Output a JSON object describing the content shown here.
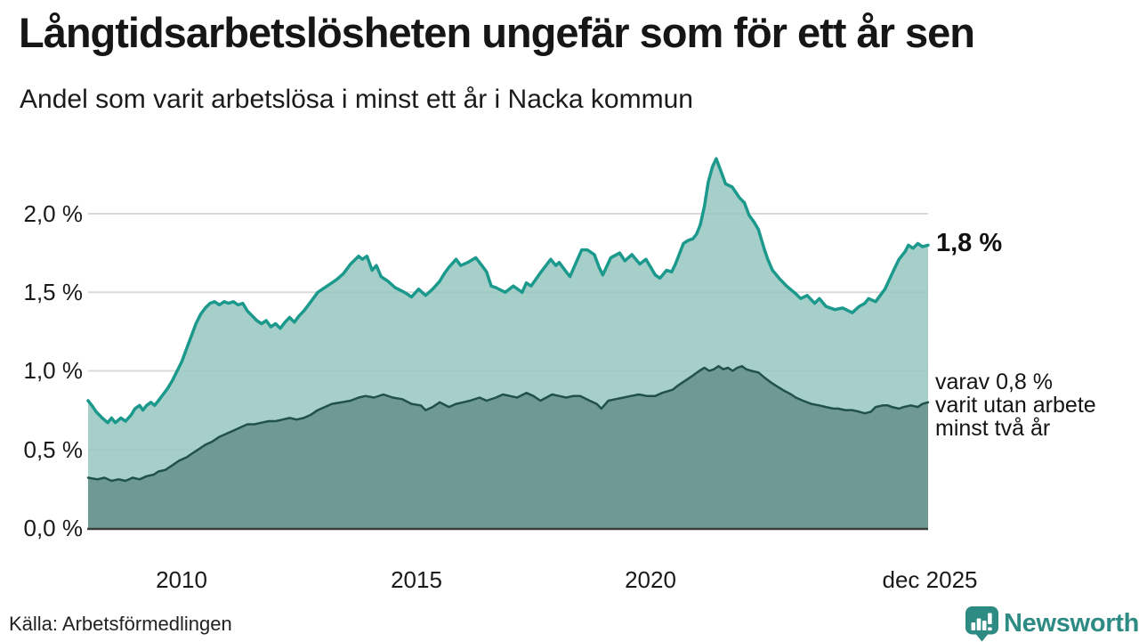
{
  "footer": {
    "source": "Källa: Arbetsförmedlingen",
    "brand": "Newsworthy"
  },
  "colors": {
    "accent_teal_line": "#1b998c",
    "area_light_fill": "#96c7c0",
    "area_dark_fill": "#65918b",
    "dark_line": "#20524b",
    "grid": "#d9d9d9",
    "axis": "#3b3b3b",
    "text": "#1a1a1a",
    "brand_teal": "#2e8b83"
  },
  "chart_data": {
    "type": "area",
    "title": "Långtidsarbetslösheten ungefär som för ett år sen",
    "subtitle": "Andel som varit arbetslösa i minst ett år i Nacka kommun",
    "legend_position": "none",
    "grid": true,
    "x_axis": {
      "range": [
        2008.0,
        2025.92
      ],
      "ticks": [
        {
          "label": "2010",
          "x": 2010
        },
        {
          "label": "2015",
          "x": 2015
        },
        {
          "label": "2020",
          "x": 2020
        },
        {
          "label": "dec 2025",
          "x": 2025.92
        }
      ]
    },
    "y_axis": {
      "unit": "%",
      "range": [
        0,
        2.45
      ],
      "ticks": [
        {
          "label": "2,0 %",
          "value": 2.0
        },
        {
          "label": "1,5 %",
          "value": 1.5
        },
        {
          "label": "1,0 %",
          "value": 1.0
        },
        {
          "label": "0,5 %",
          "value": 0.5
        },
        {
          "label": "0,0 %",
          "value": 0.0
        }
      ]
    },
    "series": [
      {
        "name": "Arbetslösa minst ett år",
        "end_value": 1.8,
        "end_label": "1,8 %",
        "line_color": "#1b998c",
        "fill_color": "#96c7c0",
        "points": [
          [
            2008.0,
            0.81
          ],
          [
            2008.08,
            0.78
          ],
          [
            2008.17,
            0.74
          ],
          [
            2008.3,
            0.7
          ],
          [
            2008.42,
            0.67
          ],
          [
            2008.5,
            0.7
          ],
          [
            2008.58,
            0.67
          ],
          [
            2008.7,
            0.7
          ],
          [
            2008.8,
            0.68
          ],
          [
            2008.92,
            0.72
          ],
          [
            2009.0,
            0.76
          ],
          [
            2009.1,
            0.78
          ],
          [
            2009.17,
            0.75
          ],
          [
            2009.25,
            0.78
          ],
          [
            2009.34,
            0.8
          ],
          [
            2009.42,
            0.78
          ],
          [
            2009.5,
            0.81
          ],
          [
            2009.6,
            0.85
          ],
          [
            2009.7,
            0.89
          ],
          [
            2009.8,
            0.94
          ],
          [
            2009.9,
            1.0
          ],
          [
            2010.0,
            1.06
          ],
          [
            2010.1,
            1.14
          ],
          [
            2010.2,
            1.22
          ],
          [
            2010.3,
            1.3
          ],
          [
            2010.4,
            1.36
          ],
          [
            2010.5,
            1.4
          ],
          [
            2010.6,
            1.43
          ],
          [
            2010.7,
            1.44
          ],
          [
            2010.8,
            1.42
          ],
          [
            2010.9,
            1.44
          ],
          [
            2011.0,
            1.43
          ],
          [
            2011.1,
            1.44
          ],
          [
            2011.2,
            1.42
          ],
          [
            2011.3,
            1.43
          ],
          [
            2011.4,
            1.38
          ],
          [
            2011.5,
            1.35
          ],
          [
            2011.6,
            1.32
          ],
          [
            2011.7,
            1.3
          ],
          [
            2011.8,
            1.32
          ],
          [
            2011.9,
            1.28
          ],
          [
            2012.0,
            1.3
          ],
          [
            2012.1,
            1.27
          ],
          [
            2012.2,
            1.31
          ],
          [
            2012.3,
            1.34
          ],
          [
            2012.4,
            1.31
          ],
          [
            2012.5,
            1.35
          ],
          [
            2012.6,
            1.38
          ],
          [
            2012.7,
            1.42
          ],
          [
            2012.8,
            1.46
          ],
          [
            2012.9,
            1.5
          ],
          [
            2013.0,
            1.52
          ],
          [
            2013.15,
            1.55
          ],
          [
            2013.3,
            1.58
          ],
          [
            2013.45,
            1.62
          ],
          [
            2013.6,
            1.68
          ],
          [
            2013.77,
            1.73
          ],
          [
            2013.85,
            1.71
          ],
          [
            2013.95,
            1.73
          ],
          [
            2014.06,
            1.64
          ],
          [
            2014.15,
            1.67
          ],
          [
            2014.25,
            1.6
          ],
          [
            2014.4,
            1.57
          ],
          [
            2014.55,
            1.53
          ],
          [
            2014.75,
            1.5
          ],
          [
            2014.9,
            1.47
          ],
          [
            2015.05,
            1.52
          ],
          [
            2015.2,
            1.48
          ],
          [
            2015.35,
            1.52
          ],
          [
            2015.5,
            1.57
          ],
          [
            2015.6,
            1.62
          ],
          [
            2015.7,
            1.66
          ],
          [
            2015.85,
            1.71
          ],
          [
            2015.95,
            1.67
          ],
          [
            2016.1,
            1.69
          ],
          [
            2016.27,
            1.72
          ],
          [
            2016.4,
            1.67
          ],
          [
            2016.5,
            1.63
          ],
          [
            2016.6,
            1.54
          ],
          [
            2016.7,
            1.53
          ],
          [
            2016.9,
            1.5
          ],
          [
            2017.07,
            1.54
          ],
          [
            2017.26,
            1.5
          ],
          [
            2017.35,
            1.56
          ],
          [
            2017.45,
            1.54
          ],
          [
            2017.64,
            1.62
          ],
          [
            2017.87,
            1.71
          ],
          [
            2017.98,
            1.67
          ],
          [
            2018.05,
            1.69
          ],
          [
            2018.2,
            1.63
          ],
          [
            2018.28,
            1.6
          ],
          [
            2018.53,
            1.77
          ],
          [
            2018.65,
            1.77
          ],
          [
            2018.8,
            1.74
          ],
          [
            2018.9,
            1.66
          ],
          [
            2018.98,
            1.61
          ],
          [
            2019.15,
            1.72
          ],
          [
            2019.34,
            1.75
          ],
          [
            2019.45,
            1.7
          ],
          [
            2019.6,
            1.74
          ],
          [
            2019.77,
            1.68
          ],
          [
            2019.9,
            1.71
          ],
          [
            2020.1,
            1.61
          ],
          [
            2020.2,
            1.59
          ],
          [
            2020.34,
            1.64
          ],
          [
            2020.45,
            1.63
          ],
          [
            2020.53,
            1.68
          ],
          [
            2020.7,
            1.81
          ],
          [
            2020.8,
            1.83
          ],
          [
            2020.9,
            1.84
          ],
          [
            2020.98,
            1.87
          ],
          [
            2021.06,
            1.93
          ],
          [
            2021.15,
            2.05
          ],
          [
            2021.23,
            2.2
          ],
          [
            2021.32,
            2.3
          ],
          [
            2021.4,
            2.35
          ],
          [
            2021.5,
            2.27
          ],
          [
            2021.6,
            2.19
          ],
          [
            2021.74,
            2.17
          ],
          [
            2021.9,
            2.1
          ],
          [
            2022.0,
            2.07
          ],
          [
            2022.1,
            1.99
          ],
          [
            2022.2,
            1.95
          ],
          [
            2022.3,
            1.9
          ],
          [
            2022.42,
            1.78
          ],
          [
            2022.5,
            1.71
          ],
          [
            2022.6,
            1.64
          ],
          [
            2022.74,
            1.59
          ],
          [
            2022.9,
            1.54
          ],
          [
            2023.1,
            1.49
          ],
          [
            2023.2,
            1.46
          ],
          [
            2023.34,
            1.48
          ],
          [
            2023.5,
            1.43
          ],
          [
            2023.6,
            1.46
          ],
          [
            2023.74,
            1.41
          ],
          [
            2023.93,
            1.39
          ],
          [
            2024.1,
            1.4
          ],
          [
            2024.3,
            1.37
          ],
          [
            2024.45,
            1.41
          ],
          [
            2024.57,
            1.43
          ],
          [
            2024.65,
            1.46
          ],
          [
            2024.8,
            1.44
          ],
          [
            2025.0,
            1.52
          ],
          [
            2025.2,
            1.65
          ],
          [
            2025.3,
            1.71
          ],
          [
            2025.43,
            1.76
          ],
          [
            2025.5,
            1.8
          ],
          [
            2025.6,
            1.78
          ],
          [
            2025.7,
            1.81
          ],
          [
            2025.8,
            1.79
          ],
          [
            2025.92,
            1.8
          ]
        ]
      },
      {
        "name": "Arbetslösa minst två år",
        "end_value": 0.8,
        "annotation_lines": [
          "varav 0,8 %",
          "varit utan arbete",
          "minst två år"
        ],
        "line_color": "#20524b",
        "fill_color": "#65918b",
        "points": [
          [
            2008.0,
            0.32
          ],
          [
            2008.2,
            0.31
          ],
          [
            2008.35,
            0.32
          ],
          [
            2008.5,
            0.3
          ],
          [
            2008.65,
            0.31
          ],
          [
            2008.8,
            0.3
          ],
          [
            2008.95,
            0.32
          ],
          [
            2009.1,
            0.31
          ],
          [
            2009.25,
            0.33
          ],
          [
            2009.4,
            0.34
          ],
          [
            2009.5,
            0.36
          ],
          [
            2009.65,
            0.37
          ],
          [
            2009.8,
            0.4
          ],
          [
            2009.95,
            0.43
          ],
          [
            2010.1,
            0.45
          ],
          [
            2010.2,
            0.47
          ],
          [
            2010.35,
            0.5
          ],
          [
            2010.5,
            0.53
          ],
          [
            2010.65,
            0.55
          ],
          [
            2010.8,
            0.58
          ],
          [
            2010.95,
            0.6
          ],
          [
            2011.1,
            0.62
          ],
          [
            2011.25,
            0.64
          ],
          [
            2011.4,
            0.66
          ],
          [
            2011.55,
            0.66
          ],
          [
            2011.7,
            0.67
          ],
          [
            2011.85,
            0.68
          ],
          [
            2012.0,
            0.68
          ],
          [
            2012.15,
            0.69
          ],
          [
            2012.3,
            0.7
          ],
          [
            2012.45,
            0.69
          ],
          [
            2012.6,
            0.7
          ],
          [
            2012.75,
            0.72
          ],
          [
            2012.9,
            0.75
          ],
          [
            2013.05,
            0.77
          ],
          [
            2013.2,
            0.79
          ],
          [
            2013.4,
            0.8
          ],
          [
            2013.6,
            0.81
          ],
          [
            2013.77,
            0.83
          ],
          [
            2013.92,
            0.84
          ],
          [
            2014.1,
            0.83
          ],
          [
            2014.3,
            0.85
          ],
          [
            2014.5,
            0.83
          ],
          [
            2014.7,
            0.82
          ],
          [
            2014.9,
            0.79
          ],
          [
            2015.1,
            0.78
          ],
          [
            2015.2,
            0.75
          ],
          [
            2015.35,
            0.77
          ],
          [
            2015.5,
            0.8
          ],
          [
            2015.7,
            0.77
          ],
          [
            2015.85,
            0.79
          ],
          [
            2016.0,
            0.8
          ],
          [
            2016.15,
            0.81
          ],
          [
            2016.35,
            0.83
          ],
          [
            2016.5,
            0.81
          ],
          [
            2016.7,
            0.83
          ],
          [
            2016.85,
            0.85
          ],
          [
            2017.0,
            0.84
          ],
          [
            2017.15,
            0.83
          ],
          [
            2017.35,
            0.86
          ],
          [
            2017.5,
            0.84
          ],
          [
            2017.65,
            0.81
          ],
          [
            2017.9,
            0.85
          ],
          [
            2018.05,
            0.84
          ],
          [
            2018.2,
            0.83
          ],
          [
            2018.35,
            0.84
          ],
          [
            2018.5,
            0.84
          ],
          [
            2018.7,
            0.81
          ],
          [
            2018.85,
            0.79
          ],
          [
            2018.95,
            0.76
          ],
          [
            2019.1,
            0.81
          ],
          [
            2019.25,
            0.82
          ],
          [
            2019.42,
            0.83
          ],
          [
            2019.58,
            0.84
          ],
          [
            2019.75,
            0.85
          ],
          [
            2019.92,
            0.84
          ],
          [
            2020.1,
            0.84
          ],
          [
            2020.25,
            0.86
          ],
          [
            2020.47,
            0.88
          ],
          [
            2020.6,
            0.91
          ],
          [
            2020.75,
            0.94
          ],
          [
            2020.9,
            0.97
          ],
          [
            2021.04,
            1.0
          ],
          [
            2021.15,
            1.02
          ],
          [
            2021.25,
            1.0
          ],
          [
            2021.35,
            1.01
          ],
          [
            2021.45,
            1.03
          ],
          [
            2021.55,
            1.01
          ],
          [
            2021.65,
            1.02
          ],
          [
            2021.75,
            1.0
          ],
          [
            2021.85,
            1.02
          ],
          [
            2021.95,
            1.03
          ],
          [
            2022.04,
            1.01
          ],
          [
            2022.15,
            1.0
          ],
          [
            2022.3,
            0.99
          ],
          [
            2022.42,
            0.96
          ],
          [
            2022.55,
            0.93
          ],
          [
            2022.7,
            0.9
          ],
          [
            2022.87,
            0.87
          ],
          [
            2023.0,
            0.85
          ],
          [
            2023.1,
            0.83
          ],
          [
            2023.25,
            0.81
          ],
          [
            2023.43,
            0.79
          ],
          [
            2023.6,
            0.78
          ],
          [
            2023.74,
            0.77
          ],
          [
            2023.9,
            0.76
          ],
          [
            2024.0,
            0.76
          ],
          [
            2024.15,
            0.75
          ],
          [
            2024.3,
            0.75
          ],
          [
            2024.45,
            0.74
          ],
          [
            2024.57,
            0.73
          ],
          [
            2024.7,
            0.74
          ],
          [
            2024.8,
            0.77
          ],
          [
            2024.95,
            0.78
          ],
          [
            2025.06,
            0.78
          ],
          [
            2025.15,
            0.77
          ],
          [
            2025.3,
            0.76
          ],
          [
            2025.4,
            0.77
          ],
          [
            2025.55,
            0.78
          ],
          [
            2025.7,
            0.77
          ],
          [
            2025.8,
            0.79
          ],
          [
            2025.92,
            0.8
          ]
        ]
      }
    ]
  }
}
